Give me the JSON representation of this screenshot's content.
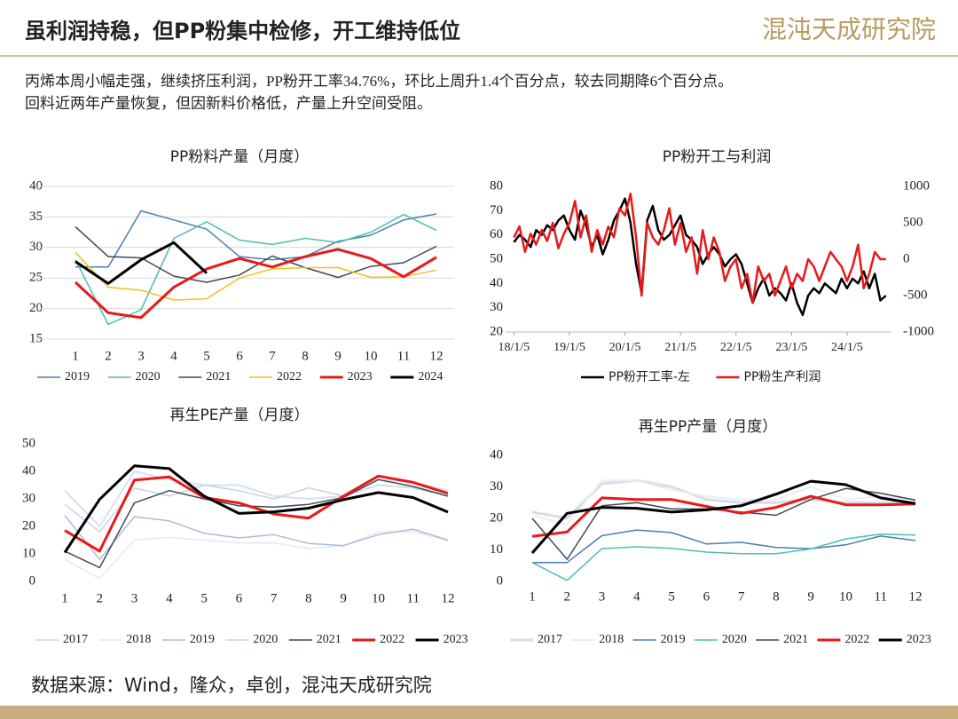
{
  "header": {
    "title": "虽利润持稳，但PP粉集中检修，开工维持低位",
    "logo": "混沌天成研究院"
  },
  "summary": [
    "丙烯本周小幅走强，继续挤压利润，PP粉开工率34.76%，环比上周升1.4个百分点，较去同期降6个百分点。",
    "回料近两年产量恢复，但因新料价格低，产量上升空间受阻。"
  ],
  "chart_data": [
    {
      "type": "line",
      "title": "PP粉料产量（月度）",
      "categories": [
        "1",
        "2",
        "3",
        "4",
        "5",
        "6",
        "7",
        "8",
        "9",
        "10",
        "11",
        "12"
      ],
      "ylim": [
        15,
        40
      ],
      "yticks": [
        15,
        20,
        25,
        30,
        35,
        40
      ],
      "grid": true,
      "series": [
        {
          "name": "2019",
          "color": "#4a7eb5",
          "line_width": 1.5,
          "values": [
            26.8,
            26.8,
            36,
            34.5,
            33,
            28.5,
            28,
            28.5,
            31,
            32,
            34.5,
            35.5
          ]
        },
        {
          "name": "2020",
          "color": "#4bbfae",
          "line_width": 1.5,
          "values": [
            28,
            17.4,
            19.8,
            31.5,
            34.2,
            31.2,
            30.5,
            31.5,
            30.8,
            32.5,
            35.4,
            32.8
          ]
        },
        {
          "name": "2021",
          "color": "#3d4a55",
          "line_width": 1.5,
          "values": [
            33.4,
            28.5,
            28.3,
            25.3,
            24.3,
            25.5,
            28.6,
            26.7,
            25.1,
            26.9,
            27.5,
            30.2
          ]
        },
        {
          "name": "2022",
          "color": "#f0c020",
          "line_width": 1.5,
          "values": [
            29.2,
            23.5,
            23,
            21.4,
            21.6,
            25,
            26.5,
            26.7,
            26.7,
            25.1,
            25.2,
            26.3
          ]
        },
        {
          "name": "2023",
          "color": "#e8191b",
          "line_width": 3,
          "values": [
            24.3,
            19.3,
            18.5,
            23.5,
            26.5,
            28.2,
            26.8,
            28.5,
            29.7,
            28.2,
            25.2,
            28.4
          ]
        },
        {
          "name": "2024",
          "color": "#000000",
          "line_width": 3,
          "values": [
            27.7,
            24.1,
            28,
            30.8,
            25.8,
            null,
            null,
            null,
            null,
            null,
            null,
            null
          ]
        }
      ]
    },
    {
      "type": "line",
      "title": "PP粉开工与利润",
      "x": [
        2018.0,
        2018.1,
        2018.2,
        2018.3,
        2018.4,
        2018.5,
        2018.6,
        2018.7,
        2018.8,
        2018.9,
        2019.0,
        2019.1,
        2019.2,
        2019.3,
        2019.4,
        2019.5,
        2019.6,
        2019.7,
        2019.8,
        2019.9,
        2020.0,
        2020.1,
        2020.2,
        2020.3,
        2020.4,
        2020.5,
        2020.6,
        2020.7,
        2020.8,
        2020.9,
        2021.0,
        2021.1,
        2021.2,
        2021.3,
        2021.4,
        2021.5,
        2021.6,
        2021.7,
        2021.8,
        2021.9,
        2022.0,
        2022.1,
        2022.2,
        2022.3,
        2022.4,
        2022.5,
        2022.6,
        2022.7,
        2022.8,
        2022.9,
        2023.0,
        2023.1,
        2023.2,
        2023.3,
        2023.4,
        2023.5,
        2023.6,
        2023.7,
        2023.8,
        2023.9,
        2024.0,
        2024.1,
        2024.2,
        2024.3,
        2024.4,
        2024.5,
        2024.6,
        2024.7
      ],
      "xlim": [
        2017.85,
        2024.8
      ],
      "xticks": [
        {
          "value": 2018,
          "label": "18/1/5"
        },
        {
          "value": 2019,
          "label": "19/1/5"
        },
        {
          "value": 2020,
          "label": "20/1/5"
        },
        {
          "value": 2021,
          "label": "21/1/5"
        },
        {
          "value": 2022,
          "label": "22/1/5"
        },
        {
          "value": 2023,
          "label": "23/1/5"
        },
        {
          "value": 2024,
          "label": "24/1/5"
        }
      ],
      "ylim": [
        20,
        80
      ],
      "yticks": [
        20,
        30,
        40,
        50,
        60,
        70,
        80
      ],
      "y2lim": [
        -1000,
        1000
      ],
      "y2ticks": [
        -1000,
        -500,
        0,
        500,
        1000
      ],
      "grid": false,
      "series": [
        {
          "name": "PP粉开工率-左",
          "color": "#000000",
          "line_width": 2.5,
          "values": [
            57,
            60,
            58,
            55,
            62,
            60,
            64,
            62,
            66,
            68,
            62,
            58,
            70,
            64,
            55,
            60,
            52,
            58,
            66,
            70,
            75,
            65,
            48,
            36,
            66,
            72,
            62,
            58,
            60,
            64,
            68,
            60,
            58,
            55,
            48,
            52,
            55,
            52,
            47,
            50,
            52,
            48,
            40,
            32,
            38,
            42,
            35,
            38,
            36,
            33,
            40,
            32,
            27,
            35,
            38,
            36,
            40,
            38,
            36,
            42,
            38,
            42,
            40,
            45,
            38,
            44,
            33,
            35
          ]
        },
        {
          "name": "PP粉生产利润",
          "color": "#e8191b",
          "line_width": 2.5,
          "axis": "y2",
          "values": [
            300,
            450,
            100,
            350,
            200,
            400,
            250,
            500,
            150,
            350,
            500,
            800,
            300,
            600,
            100,
            400,
            200,
            450,
            300,
            700,
            600,
            900,
            300,
            -500,
            500,
            300,
            200,
            400,
            700,
            200,
            500,
            100,
            300,
            -200,
            400,
            0,
            300,
            100,
            -300,
            -100,
            0,
            -400,
            -200,
            -600,
            -100,
            -300,
            -200,
            -500,
            -300,
            -100,
            -400,
            -200,
            -300,
            0,
            -100,
            -300,
            -100,
            100,
            0,
            -100,
            -300,
            -100,
            200,
            -400,
            -200,
            100,
            0,
            0
          ]
        }
      ]
    },
    {
      "type": "line",
      "title": "再生PE产量（月度）",
      "categories": [
        "1",
        "2",
        "3",
        "4",
        "5",
        "6",
        "7",
        "8",
        "9",
        "10",
        "11",
        "12"
      ],
      "ylim": [
        0,
        50
      ],
      "yticks": [
        0,
        10,
        20,
        30,
        40,
        50
      ],
      "grid": false,
      "series": [
        {
          "name": "2017",
          "color": "#d6e2f0",
          "line_width": 2,
          "values": [
            33,
            20,
            40,
            37,
            35,
            35,
            31,
            30,
            31,
            37,
            36,
            33
          ]
        },
        {
          "name": "2018",
          "color": "#e8edf5",
          "line_width": 2,
          "values": [
            8,
            1,
            15,
            16,
            15,
            14,
            14,
            12,
            13,
            18,
            18,
            15
          ]
        },
        {
          "name": "2019",
          "color": "#a9bdd6",
          "line_width": 1.5,
          "values": [
            24,
            8,
            23.5,
            22,
            17.5,
            15.8,
            17,
            13.8,
            13,
            17,
            19,
            15
          ]
        },
        {
          "name": "2020",
          "color": "#c5d4e6",
          "line_width": 1.5,
          "values": [
            28,
            18,
            34,
            31,
            35,
            33,
            30,
            34,
            31,
            35,
            34,
            31
          ]
        },
        {
          "name": "2021",
          "color": "#3d4a55",
          "line_width": 1.5,
          "values": [
            11,
            5,
            28.5,
            33,
            30,
            27.5,
            27,
            28,
            30.5,
            37,
            34.5,
            31
          ]
        },
        {
          "name": "2022",
          "color": "#e8191b",
          "line_width": 3,
          "values": [
            18.5,
            11,
            36.8,
            38,
            30.5,
            28.5,
            24.5,
            23,
            31,
            38.3,
            36,
            32
          ]
        },
        {
          "name": "2023",
          "color": "#000000",
          "line_width": 3,
          "values": [
            10.5,
            29.8,
            42,
            41,
            31,
            24.7,
            25.3,
            26.6,
            29.7,
            32.3,
            30.5,
            25.2
          ]
        }
      ]
    },
    {
      "type": "line",
      "title": "再生PP产量（月度）",
      "categories": [
        "1",
        "2",
        "3",
        "4",
        "5",
        "6",
        "7",
        "8",
        "9",
        "10",
        "11",
        "12"
      ],
      "ylim": [
        0,
        40
      ],
      "yticks": [
        0,
        10,
        20,
        30,
        40
      ],
      "grid": false,
      "series": [
        {
          "name": "2017",
          "color": "#d9dde3",
          "line_width": 3,
          "values": [
            22,
            20,
            31,
            32,
            30,
            26,
            25,
            25,
            26,
            25,
            25,
            25
          ]
        },
        {
          "name": "2018",
          "color": "#eaeef4",
          "line_width": 2,
          "values": [
            21,
            18,
            32,
            32,
            29,
            27,
            26,
            26,
            30,
            26,
            27,
            26
          ]
        },
        {
          "name": "2019",
          "color": "#4a7eb5",
          "line_width": 1.5,
          "values": [
            6,
            6,
            14.5,
            16.3,
            15.5,
            11.9,
            12.4,
            10.8,
            10.4,
            11.6,
            14.4,
            13
          ]
        },
        {
          "name": "2020",
          "color": "#4bbfae",
          "line_width": 1.5,
          "values": [
            6,
            0.3,
            10.4,
            11,
            10.5,
            9.3,
            8.8,
            8.8,
            10.3,
            13.5,
            15,
            14.7
          ]
        },
        {
          "name": "2021",
          "color": "#3d4a55",
          "line_width": 1.5,
          "values": [
            20,
            7,
            24,
            25,
            23,
            23,
            22,
            21,
            26,
            29.5,
            28,
            25.8
          ]
        },
        {
          "name": "2022",
          "color": "#e8191b",
          "line_width": 3,
          "values": [
            14.3,
            15.7,
            26.5,
            26,
            26,
            23.8,
            21.6,
            23.5,
            27,
            24.3,
            24.3,
            24.6
          ]
        },
        {
          "name": "2023",
          "color": "#000000",
          "line_width": 3,
          "values": [
            9,
            21.6,
            23.5,
            23.2,
            22,
            22.7,
            24,
            27.7,
            31.8,
            30.7,
            26.5,
            24.7
          ]
        }
      ]
    }
  ],
  "footer": {
    "source": "数据来源：Wind，隆众，卓创，混沌天成研究院"
  }
}
